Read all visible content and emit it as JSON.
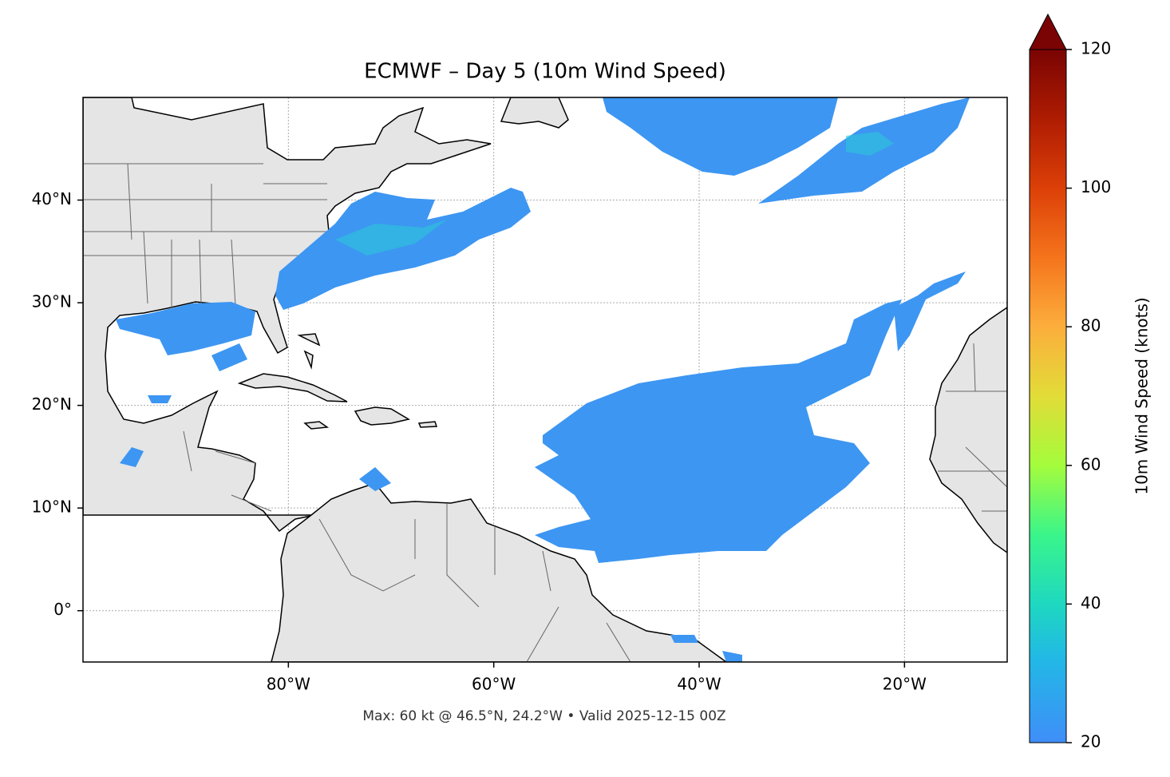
{
  "map": {
    "title": "ECMWF – Day 5 (10m Wind Speed)",
    "xlim": [
      -100,
      -10
    ],
    "ylim": [
      -5,
      50
    ],
    "xticks": [
      {
        "value": -80,
        "label": "80°W"
      },
      {
        "value": -60,
        "label": "60°W"
      },
      {
        "value": -40,
        "label": "40°W"
      },
      {
        "value": -20,
        "label": "20°W"
      }
    ],
    "yticks": [
      {
        "value": 0,
        "label": "0°"
      },
      {
        "value": 10,
        "label": "10°N"
      },
      {
        "value": 20,
        "label": "20°N"
      },
      {
        "value": 30,
        "label": "30°N"
      },
      {
        "value": 40,
        "label": "40°N"
      }
    ],
    "grid": true
  },
  "colorbar": {
    "label": "10m Wind Speed (knots)",
    "lim": [
      20,
      120
    ],
    "ticks": [
      20,
      40,
      60,
      80,
      100,
      120
    ]
  },
  "footer": "Max: 60 kt @ 46.5°N, 24.2°W • Valid 2025-12-15 00Z"
}
